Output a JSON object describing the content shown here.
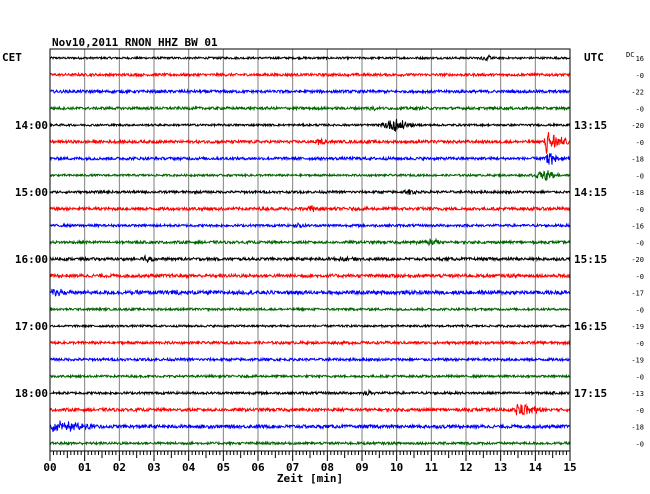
{
  "chart_data": {
    "type": "line",
    "title": "Nov10,2011   RNON HHZ BW 01",
    "left_label": "CET",
    "right_label": "UTC",
    "dc_label": "DC",
    "xlabel": "Zeit [min]",
    "x_ticks": [
      "00",
      "01",
      "02",
      "03",
      "04",
      "05",
      "06",
      "07",
      "08",
      "09",
      "10",
      "11",
      "12",
      "13",
      "14",
      "15"
    ],
    "xlim": [
      0,
      15
    ],
    "grid": true,
    "trace_colors": [
      "#000000",
      "#ff0000",
      "#0000ff",
      "#006400"
    ],
    "left_time_labels": [
      {
        "trace": 4,
        "label": "14:00"
      },
      {
        "trace": 8,
        "label": "15:00"
      },
      {
        "trace": 12,
        "label": "16:00"
      },
      {
        "trace": 16,
        "label": "17:00"
      },
      {
        "trace": 20,
        "label": "18:00"
      }
    ],
    "right_time_labels": [
      {
        "trace": 4,
        "label": "13:15"
      },
      {
        "trace": 8,
        "label": "14:15"
      },
      {
        "trace": 12,
        "label": "15:15"
      },
      {
        "trace": 16,
        "label": "16:15"
      },
      {
        "trace": 20,
        "label": "17:15"
      }
    ],
    "dc_offsets": [
      "16",
      "-0",
      "-22",
      "-0",
      "-20",
      "-0",
      "-18",
      "-0",
      "-18",
      "-0",
      "-16",
      "-0",
      "-20",
      "-0",
      "-17",
      "-0",
      "-19",
      "-0",
      "-19",
      "-0",
      "-13",
      "-0",
      "-18",
      "-0"
    ],
    "traces": [
      {
        "noise": 1.0,
        "events": [
          {
            "t": 12.6,
            "amp": 3,
            "dur": 0.25
          }
        ]
      },
      {
        "noise": 1.3,
        "events": []
      },
      {
        "noise": 1.4,
        "events": []
      },
      {
        "noise": 1.3,
        "events": [
          {
            "t": 9.3,
            "amp": 3,
            "dur": 0.2
          }
        ]
      },
      {
        "noise": 1.0,
        "events": [
          {
            "t": 10.0,
            "amp": 7,
            "dur": 0.6
          }
        ]
      },
      {
        "noise": 1.4,
        "events": [
          {
            "t": 7.8,
            "amp": 3,
            "dur": 0.2
          },
          {
            "t": 14.3,
            "amp": 14,
            "dur": 0.8,
            "quake": true
          }
        ]
      },
      {
        "noise": 1.4,
        "events": [
          {
            "t": 14.3,
            "amp": 10,
            "dur": 0.6,
            "quake": true
          }
        ]
      },
      {
        "noise": 1.0,
        "events": [
          {
            "t": 14.3,
            "amp": 5,
            "dur": 0.5
          }
        ]
      },
      {
        "noise": 1.2,
        "events": [
          {
            "t": 10.4,
            "amp": 2,
            "dur": 0.3
          }
        ]
      },
      {
        "noise": 1.5,
        "events": [
          {
            "t": 7.5,
            "amp": 3,
            "dur": 0.3
          }
        ]
      },
      {
        "noise": 1.2,
        "events": [
          {
            "t": 7.2,
            "amp": 3,
            "dur": 0.2
          }
        ]
      },
      {
        "noise": 1.3,
        "events": [
          {
            "t": 11.0,
            "amp": 3,
            "dur": 0.5
          }
        ]
      },
      {
        "noise": 1.4,
        "events": [
          {
            "t": 2.8,
            "amp": 3,
            "dur": 0.3
          },
          {
            "t": 8.5,
            "amp": 2,
            "dur": 0.4
          }
        ]
      },
      {
        "noise": 1.6,
        "events": [
          {
            "t": 15.0,
            "amp": 4,
            "dur": 0.2
          }
        ]
      },
      {
        "noise": 1.8,
        "events": [
          {
            "t": 0.1,
            "amp": 4,
            "dur": 0.5
          },
          {
            "t": 3.6,
            "amp": 4,
            "dur": 0.2
          }
        ]
      },
      {
        "noise": 1.1,
        "events": []
      },
      {
        "noise": 1.0,
        "events": []
      },
      {
        "noise": 1.3,
        "events": []
      },
      {
        "noise": 1.3,
        "events": []
      },
      {
        "noise": 1.1,
        "events": []
      },
      {
        "noise": 1.2,
        "events": [
          {
            "t": 9.2,
            "amp": 3,
            "dur": 0.2
          }
        ]
      },
      {
        "noise": 1.5,
        "events": [
          {
            "t": 13.45,
            "amp": 9,
            "dur": 1.0,
            "quake": true
          }
        ]
      },
      {
        "noise": 1.6,
        "events": [
          {
            "t": 0.3,
            "amp": 5,
            "dur": 1.3
          }
        ]
      },
      {
        "noise": 1.2,
        "events": []
      }
    ]
  }
}
